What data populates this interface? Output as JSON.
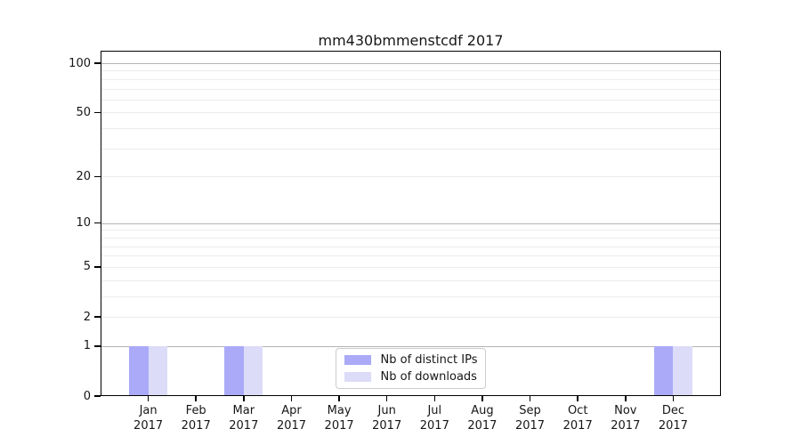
{
  "chart_data": {
    "type": "bar",
    "title": "mm430bmmenstcdf 2017",
    "categories": [
      "Jan",
      "Feb",
      "Mar",
      "Apr",
      "May",
      "Jun",
      "Jul",
      "Aug",
      "Sep",
      "Oct",
      "Nov",
      "Dec"
    ],
    "x_year_label": "2017",
    "series": [
      {
        "name": "Nb of distinct IPs",
        "color": "#aaaaf8",
        "values": [
          1,
          0,
          1,
          0,
          0,
          0,
          0,
          0,
          0,
          0,
          0,
          1
        ]
      },
      {
        "name": "Nb of downloads",
        "color": "#dcdcf8",
        "values": [
          1,
          0,
          1,
          0,
          0,
          0,
          0,
          0,
          0,
          0,
          0,
          1
        ]
      }
    ],
    "yticks": [
      0,
      1,
      2,
      5,
      10,
      20,
      50,
      100
    ],
    "major_gridlines": [
      1,
      10,
      100
    ],
    "minor_gridlines": [
      2,
      3,
      4,
      5,
      6,
      7,
      8,
      9,
      20,
      30,
      40,
      50,
      60,
      70,
      80,
      90
    ],
    "scale": "log1p",
    "ylim": [
      0,
      119
    ],
    "xlim": [
      -1,
      12
    ],
    "grid": true,
    "legend_position": "lower center",
    "colors": {
      "spine": "#000000",
      "text": "#161616",
      "grid_major": "#b3b3b3",
      "grid_minor": "#ececec",
      "legend_border": "#cccccc"
    }
  }
}
